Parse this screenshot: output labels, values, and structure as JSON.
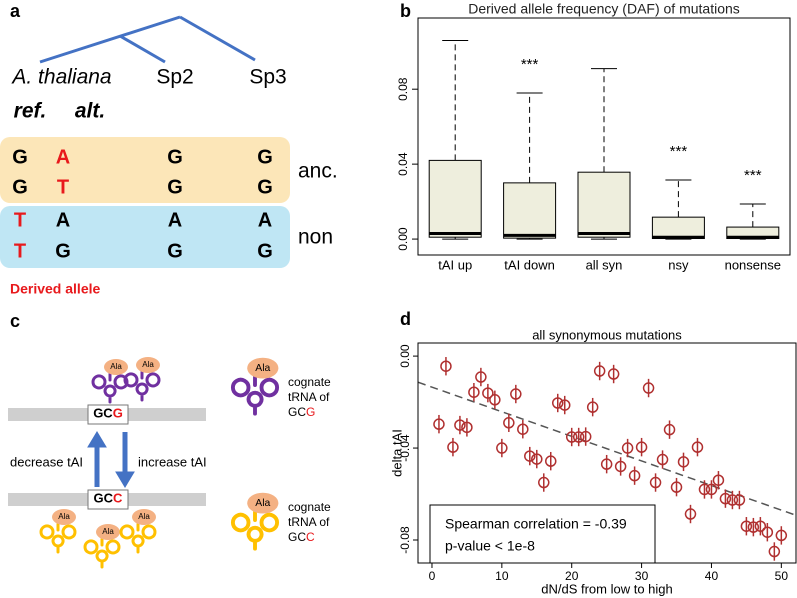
{
  "panel_a": {
    "label": "a",
    "leaves": [
      "A. thaliana",
      "Sp2",
      "Sp3"
    ],
    "headers": [
      "ref.",
      "alt."
    ],
    "groups": [
      {
        "name": "anc.",
        "derived_column": 1,
        "rows": [
          [
            "G",
            "A",
            "G",
            "G"
          ],
          [
            "G",
            "T",
            "G",
            "G"
          ]
        ]
      },
      {
        "name": "non",
        "derived_column": 0,
        "rows": [
          [
            "T",
            "A",
            "A",
            "A"
          ],
          [
            "T",
            "G",
            "G",
            "G"
          ]
        ]
      }
    ],
    "legend": "Derived allele"
  },
  "panel_c": {
    "label": "c",
    "trna_label": "Ala",
    "codons": [
      {
        "prefix": "GC",
        "last": "G"
      },
      {
        "prefix": "GC",
        "last": "C"
      }
    ],
    "arrows": [
      "decrease tAI",
      "increase tAI"
    ],
    "cognate": [
      "cognate",
      "tRNA of"
    ]
  },
  "chart_data": [
    {
      "type": "box",
      "panel_label": "b",
      "title": "Derived allele frequency (DAF) of mutations",
      "categories": [
        "tAI up",
        "tAI down",
        "all syn",
        "nsy",
        "nonsense"
      ],
      "boxes": [
        {
          "low": 0,
          "q1": 0.001,
          "median": 0.003,
          "q3": 0.042,
          "high": 0.106
        },
        {
          "low": 0,
          "q1": 0.0005,
          "median": 0.002,
          "q3": 0.03,
          "high": 0.078
        },
        {
          "low": 0,
          "q1": 0.001,
          "median": 0.003,
          "q3": 0.0357,
          "high": 0.091
        },
        {
          "low": 0,
          "q1": 0.0003,
          "median": 0.001,
          "q3": 0.0117,
          "high": 0.0315
        },
        {
          "low": 0,
          "q1": 0.0003,
          "median": 0.001,
          "q3": 0.0064,
          "high": 0.0187
        }
      ],
      "annotations": [
        null,
        "***",
        null,
        "***",
        "***"
      ],
      "color": "#eeeedd",
      "ylim": [
        -0.0085,
        0.118
      ],
      "yticks": [
        {
          "value": 0,
          "label": "0.00"
        },
        0.04,
        0.08
      ]
    },
    {
      "type": "scatter",
      "panel_label": "d",
      "title": "all synonymous mutations",
      "xlabel": "dN/dS from low to high",
      "ylabel": "delta tAI",
      "x": [
        1,
        2,
        3,
        4,
        5,
        6,
        7,
        8,
        9,
        10,
        11,
        12,
        13,
        14,
        15,
        16,
        17,
        18,
        19,
        20,
        21,
        22,
        23,
        24,
        25,
        26,
        27,
        28,
        29,
        30,
        31,
        32,
        33,
        34,
        35,
        36,
        37,
        38,
        39,
        40,
        41,
        42,
        43,
        44,
        45,
        46,
        47,
        48,
        49,
        50
      ],
      "values": [
        -0.0296,
        -0.0044,
        -0.0396,
        -0.03,
        -0.031,
        -0.0157,
        -0.0091,
        -0.0161,
        -0.019,
        -0.04,
        -0.029,
        -0.0165,
        -0.0318,
        -0.0435,
        -0.0448,
        -0.055,
        -0.0457,
        -0.0204,
        -0.0213,
        -0.0352,
        -0.0352,
        -0.035,
        -0.0222,
        -0.0065,
        -0.047,
        -0.0078,
        -0.048,
        -0.04,
        -0.052,
        -0.0396,
        -0.0139,
        -0.055,
        -0.045,
        -0.032,
        -0.057,
        -0.046,
        -0.0687,
        -0.0396,
        -0.058,
        -0.058,
        -0.054,
        -0.062,
        -0.0626,
        -0.0626,
        -0.074,
        -0.0744,
        -0.074,
        -0.0766,
        -0.085,
        -0.078
      ],
      "error": 0.004,
      "color": "#b03030",
      "trendline": {
        "slope": -0.00107,
        "intercept": -0.0135
      },
      "annotation": [
        "Spearman correlation = -0.39",
        "p-value < 1e-8"
      ],
      "xlim": [
        -2,
        52.1
      ],
      "ylim": [
        -0.09,
        0.0057
      ],
      "xticks": [
        0,
        10,
        20,
        30,
        40,
        50
      ],
      "yticks": [
        {
          "value": 0,
          "label": "0.00"
        },
        -0.04,
        -0.08
      ]
    }
  ]
}
